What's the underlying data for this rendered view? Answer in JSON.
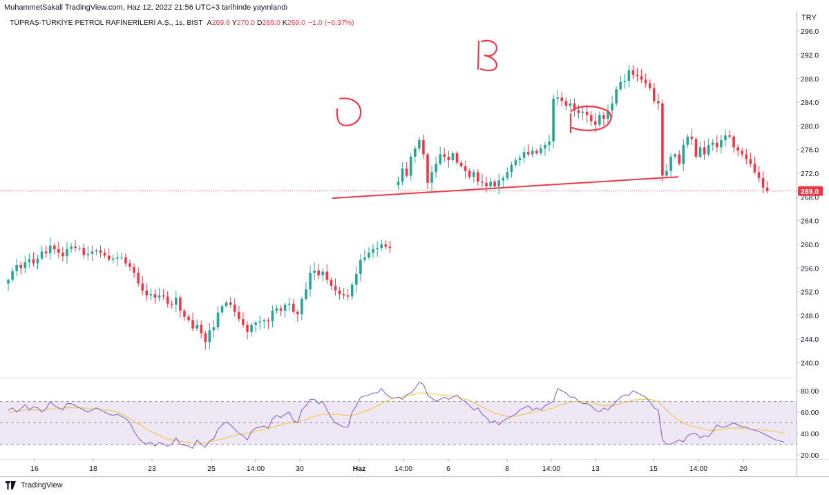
{
  "header": {
    "published": "MuhammetSakall TradingView.com, Haz 12, 2022 21:56 UTC+3 tarihinde yayınlandı"
  },
  "legend": {
    "symbol": "TÜPRAŞ-TÜRKİYE PETROL RAFİNERİLERİ A.Ş., 1s, BIST",
    "open_label": "A",
    "open": "269.6",
    "high_label": "Y",
    "high": "270.0",
    "low_label": "D",
    "low": "269.0",
    "close_label": "K",
    "close": "269.0",
    "change": "−1.0 (−0.37%)"
  },
  "currency": "TRY",
  "brand": {
    "name": "TradingView",
    "logo": "tradingview-logo-icon"
  },
  "colors": {
    "up": "#26a69a",
    "down": "#f23645",
    "annotation": "#f23645",
    "rsi_line": "#7e57c2",
    "rsi_ma": "#f0c431",
    "rsi_band": "#ede7f6"
  },
  "chart_data": [
    {
      "type": "candlestick",
      "title": "",
      "x_tick_labels": [
        "16",
        "18",
        "23",
        "25",
        "14:00",
        "30",
        "Haz",
        "14:00",
        "6",
        "8",
        "14:00",
        "13",
        "15",
        "14:00",
        "20"
      ],
      "y_ticks": [
        240,
        244,
        248,
        252,
        256,
        260,
        264,
        268,
        272,
        276,
        280,
        284,
        288,
        292,
        296
      ],
      "ylim": [
        237.5,
        299.4
      ],
      "last_price": 269.0,
      "last_price_label": "269.0",
      "grid": false,
      "trendline": {
        "from_price": 267.8,
        "to_price": 271.4
      },
      "annotations": [
        "S",
        "B",
        "S"
      ],
      "closes": [
        254,
        255.5,
        256.5,
        256,
        257,
        257.5,
        256.8,
        257.6,
        258.8,
        258.5,
        259.8,
        259.2,
        258.6,
        258,
        259.2,
        259.6,
        259.4,
        259.4,
        258.2,
        258.4,
        258.8,
        259,
        258.6,
        258.1,
        257.4,
        257.6,
        257.8,
        257.8,
        256.8,
        256.2,
        255.2,
        253.4,
        252.2,
        251.4,
        251.6,
        251,
        251.4,
        251.2,
        250,
        249.8,
        251,
        248.8,
        247.8,
        247.2,
        245.8,
        246.4,
        245,
        243.5,
        245.5,
        246,
        248.5,
        249.6,
        250.2,
        249.8,
        248.6,
        247.4,
        246.4,
        245.2,
        246.4,
        246.8,
        247,
        247.2,
        247,
        248.8,
        249.2,
        248.8,
        249.8,
        250,
        248.6,
        248.2,
        250.8,
        252.4,
        255.2,
        255.6,
        254.8,
        255.4,
        254,
        253,
        252.2,
        251.6,
        251.4,
        251.2,
        253.2,
        255,
        257.4,
        257.8,
        258.6,
        259.2,
        259.4,
        260,
        259.6,
        259.4,
        null,
        270.6,
        272.8,
        271.6,
        274.8,
        276.2,
        277.6,
        275.2,
        270.4,
        272.2,
        273.6,
        275.2,
        274.8,
        274.2,
        275.4,
        273.8,
        273.2,
        272.4,
        271.4,
        272.2,
        270.6,
        270.4,
        269.8,
        270.6,
        269.8,
        270.8,
        271.2,
        272.2,
        273.4,
        274.2,
        274.6,
        275.6,
        275.2,
        275.8,
        275.4,
        276.2,
        276.8,
        277.4,
        284.6,
        284.8,
        284.2,
        283.4,
        283.8,
        282.6,
        282.2,
        282.4,
        281.8,
        280.8,
        280.2,
        281.8,
        281.2,
        282.6,
        283.8,
        286.2,
        287.4,
        287.6,
        289.4,
        288.6,
        288.4,
        287.8,
        287.2,
        286.4,
        284.2,
        283.8,
        271.6,
        272.4,
        274.8,
        275.2,
        273.6,
        276.8,
        278.2,
        277.8,
        274.8,
        276.4,
        275.2,
        276.8,
        277.2,
        276.4,
        277.6,
        278.4,
        278.2,
        276.4,
        275.8,
        275.2,
        274.4,
        273.6,
        272.2,
        271.2,
        269.6,
        269
      ]
    },
    {
      "type": "line",
      "title": "",
      "y_ticks": [
        20,
        40,
        60,
        80
      ],
      "y_tick_labels": [
        "20.00",
        "40.00",
        "60.00",
        "80.00"
      ],
      "ylim": [
        16,
        91
      ],
      "band": [
        30,
        70
      ],
      "midline": 50,
      "series": [
        {
          "values": [
            62,
            64,
            60,
            63,
            67,
            62,
            65,
            64,
            60,
            63,
            70,
            66,
            64,
            62,
            68,
            68,
            66,
            64,
            62,
            60,
            62,
            64,
            62,
            60,
            58,
            57,
            58,
            56,
            54,
            50,
            42,
            36,
            32,
            30,
            32,
            28,
            32,
            30,
            28,
            30,
            36,
            30,
            29,
            28,
            26,
            34,
            30,
            27,
            33,
            35,
            44,
            48,
            51,
            48,
            44,
            40,
            38,
            34,
            42,
            45,
            46,
            47,
            45,
            54,
            57,
            55,
            58,
            60,
            52,
            50,
            62,
            66,
            72,
            72,
            68,
            70,
            62,
            55,
            50,
            48,
            46,
            46,
            60,
            66,
            74,
            75,
            76,
            78,
            78,
            82,
            77,
            74,
            73,
            74,
            72,
            76,
            78,
            82,
            88,
            86,
            76,
            73,
            70,
            72,
            74,
            72,
            74,
            76,
            72,
            70,
            66,
            62,
            64,
            58,
            55,
            50,
            52,
            48,
            52,
            54,
            56,
            58,
            62,
            64,
            66,
            62,
            64,
            62,
            66,
            68,
            70,
            82,
            80,
            78,
            74,
            74,
            70,
            68,
            68,
            66,
            62,
            60,
            64,
            62,
            66,
            70,
            74,
            76,
            76,
            80,
            78,
            76,
            74,
            70,
            64,
            62,
            34,
            30,
            30,
            32,
            34,
            32,
            38,
            40,
            40,
            36,
            38,
            37,
            42,
            48,
            46,
            46,
            48,
            50,
            48,
            46,
            46,
            44,
            43,
            42,
            40,
            38,
            36,
            34,
            33,
            32
          ]
        },
        {
          "values": [
            60,
            60,
            61,
            61,
            62,
            62,
            62,
            62,
            62,
            63,
            63,
            63,
            63,
            64,
            64,
            64,
            64,
            64,
            64,
            63,
            63,
            63,
            63,
            62,
            62,
            61,
            60,
            58,
            56,
            54,
            51,
            49,
            47,
            44,
            42,
            40,
            38,
            36,
            35,
            34,
            34,
            33,
            32,
            32,
            31,
            31,
            31,
            31,
            32,
            33,
            34,
            35,
            36,
            37,
            38,
            39,
            40,
            40,
            41,
            42,
            43,
            44,
            45,
            46,
            47,
            48,
            49,
            50,
            51,
            51,
            52,
            53,
            55,
            56,
            57,
            58,
            58,
            58,
            58,
            58,
            57,
            57,
            57,
            58,
            59,
            61,
            62,
            64,
            66,
            68,
            70,
            72,
            73,
            74,
            74,
            75,
            76,
            77,
            78,
            78,
            78,
            77,
            77,
            76,
            76,
            75,
            75,
            74,
            73,
            72,
            71,
            69,
            67,
            65,
            63,
            61,
            59,
            58,
            57,
            56,
            56,
            56,
            57,
            58,
            59,
            60,
            61,
            61,
            62,
            63,
            64,
            66,
            67,
            68,
            69,
            70,
            70,
            70,
            69,
            69,
            68,
            67,
            66,
            66,
            66,
            67,
            68,
            69,
            70,
            71,
            72,
            72,
            72,
            72,
            71,
            70,
            66,
            62,
            58,
            55,
            52,
            50,
            48,
            47,
            46,
            45,
            44,
            43,
            43,
            43,
            44,
            44,
            45,
            45,
            45,
            45,
            45,
            44,
            44,
            44,
            43,
            43,
            42,
            42,
            41,
            41
          ]
        }
      ]
    }
  ]
}
